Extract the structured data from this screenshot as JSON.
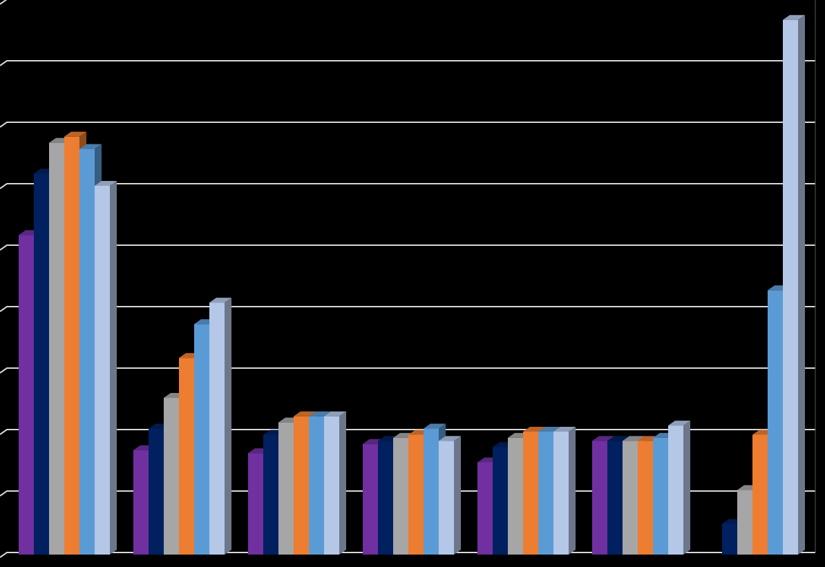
{
  "chart_data": {
    "type": "bar",
    "style": "3d-clustered-column",
    "categories": [
      "",
      "",
      "",
      "",
      "",
      "",
      ""
    ],
    "ylim": [
      0,
      9
    ],
    "gridlines": true,
    "legend": "none",
    "background": "#000000",
    "gridline_color": "#d9d9d9",
    "series": [
      {
        "color": "#7030a0",
        "values": [
          5.2,
          1.7,
          1.65,
          1.8,
          1.5,
          1.85,
          null
        ]
      },
      {
        "color": "#002060",
        "values": [
          6.2,
          2.05,
          1.95,
          1.85,
          1.75,
          1.85,
          0.5
        ]
      },
      {
        "color": "#a6a6a6",
        "values": [
          6.7,
          2.55,
          2.15,
          1.9,
          1.9,
          1.85,
          1.05
        ]
      },
      {
        "color": "#ed7d31",
        "values": [
          6.8,
          3.2,
          2.25,
          1.95,
          2.0,
          1.85,
          1.95
        ]
      },
      {
        "color": "#5b9bd5",
        "values": [
          6.6,
          3.75,
          2.25,
          2.05,
          2.0,
          1.9,
          4.3
        ]
      },
      {
        "color": "#b4c7e7",
        "values": [
          6.0,
          4.1,
          2.25,
          1.85,
          2.0,
          2.1,
          8.7
        ]
      }
    ]
  }
}
